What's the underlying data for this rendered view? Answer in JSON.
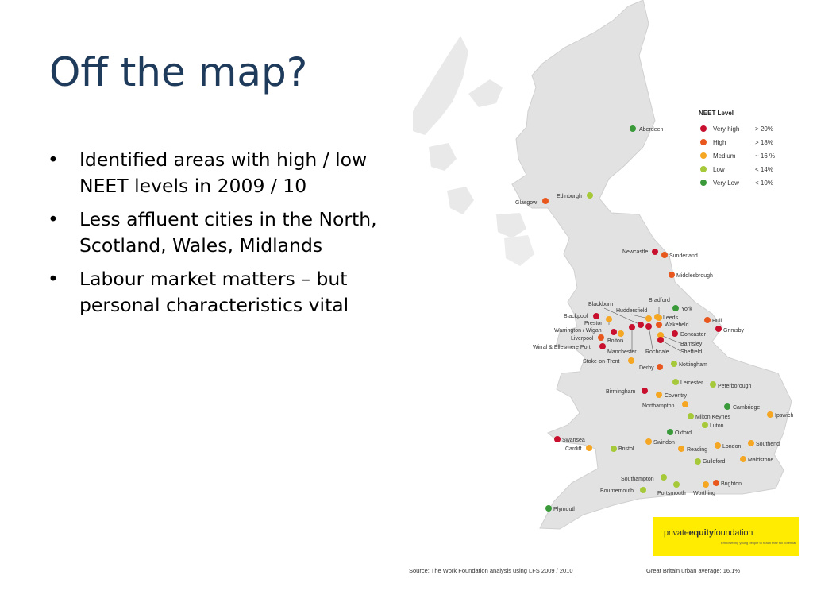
{
  "slide": {
    "title": "Off the map?",
    "bullets": [
      "Identified areas with high / low NEET levels  in 2009 / 10",
      "Less affluent cities in the North, Scotland, Wales, Midlands",
      "Labour market matters – but personal characteristics vital"
    ],
    "bullet_glyph": "•"
  },
  "legend": {
    "title": "NEET Level",
    "levels": [
      {
        "name": "Very high",
        "range": "> 20%",
        "color": "#c8102e"
      },
      {
        "name": "High",
        "range": "> 18%",
        "color": "#e8571e"
      },
      {
        "name": "Medium",
        "range": "~ 16 %",
        "color": "#f5a623"
      },
      {
        "name": "Low",
        "range": "< 14%",
        "color": "#a6c93a"
      },
      {
        "name": "Very Low",
        "range": "< 10%",
        "color": "#3a9a3a"
      }
    ]
  },
  "cities": [
    {
      "name": "Aberdeen",
      "level": "Very Low"
    },
    {
      "name": "Edinburgh",
      "level": "Low"
    },
    {
      "name": "Glasgow",
      "level": "High"
    },
    {
      "name": "Newcastle",
      "level": "Very high"
    },
    {
      "name": "Sunderland",
      "level": "High"
    },
    {
      "name": "Middlesbrough",
      "level": "High"
    },
    {
      "name": "Bradford",
      "level": "Medium"
    },
    {
      "name": "York",
      "level": "Very Low"
    },
    {
      "name": "Blackburn",
      "level": "Very high"
    },
    {
      "name": "Huddersfield",
      "level": "Medium"
    },
    {
      "name": "Leeds",
      "level": "Medium"
    },
    {
      "name": "Hull",
      "level": "High"
    },
    {
      "name": "Blackpool",
      "level": "Very high"
    },
    {
      "name": "Preston",
      "level": "Medium"
    },
    {
      "name": "Wakefield",
      "level": "High"
    },
    {
      "name": "Grimsby",
      "level": "Very high"
    },
    {
      "name": "Warrington / Wigan",
      "level": "Very high"
    },
    {
      "name": "Doncaster",
      "level": "Very high"
    },
    {
      "name": "Liverpool",
      "level": "High"
    },
    {
      "name": "Bolton",
      "level": "Medium"
    },
    {
      "name": "Barnsley",
      "level": "Medium"
    },
    {
      "name": "Wirral & Ellesmere Port",
      "level": "Very high"
    },
    {
      "name": "Manchester",
      "level": "Very high"
    },
    {
      "name": "Rochdale",
      "level": "Very high"
    },
    {
      "name": "Sheffield",
      "level": "Very high"
    },
    {
      "name": "Stoke-on-Trent",
      "level": "Medium"
    },
    {
      "name": "Derby",
      "level": "High"
    },
    {
      "name": "Nottingham",
      "level": "Low"
    },
    {
      "name": "Leicester",
      "level": "Low"
    },
    {
      "name": "Peterborough",
      "level": "Low"
    },
    {
      "name": "Birmingham",
      "level": "Very high"
    },
    {
      "name": "Coventry",
      "level": "Medium"
    },
    {
      "name": "Northampton",
      "level": "Medium"
    },
    {
      "name": "Cambridge",
      "level": "Very Low"
    },
    {
      "name": "Milton Keynes",
      "level": "Low"
    },
    {
      "name": "Ipswich",
      "level": "Medium"
    },
    {
      "name": "Luton",
      "level": "Low"
    },
    {
      "name": "Oxford",
      "level": "Very Low"
    },
    {
      "name": "Swansea",
      "level": "Very high"
    },
    {
      "name": "Cardiff",
      "level": "Medium"
    },
    {
      "name": "Bristol",
      "level": "Low"
    },
    {
      "name": "Swindon",
      "level": "Medium"
    },
    {
      "name": "Reading",
      "level": "Medium"
    },
    {
      "name": "London",
      "level": "Medium"
    },
    {
      "name": "Southend",
      "level": "Medium"
    },
    {
      "name": "Guildford",
      "level": "Low"
    },
    {
      "name": "Maidstone",
      "level": "Medium"
    },
    {
      "name": "Southampton",
      "level": "Low"
    },
    {
      "name": "Bournemouth",
      "level": "Low"
    },
    {
      "name": "Portsmouth",
      "level": "Low"
    },
    {
      "name": "Worthing",
      "level": "Medium"
    },
    {
      "name": "Brighton",
      "level": "High"
    },
    {
      "name": "Plymouth",
      "level": "Very Low"
    }
  ],
  "footer": {
    "source": "Source: The Work Foundation analysis using LFS 2009 / 2010",
    "average": "Great Britain urban average: 16.1%"
  },
  "logo": {
    "text_regular": "private",
    "text_bold": "equity",
    "text_regular2": "foundation",
    "tagline": "Empowering young people to reach their full potential",
    "color": "#ffec00"
  }
}
